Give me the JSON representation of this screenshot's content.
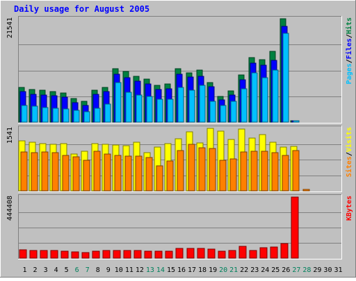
{
  "chart_data": {
    "type": "bar",
    "title": "Daily usage for August 2005",
    "categories": [
      "1",
      "2",
      "3",
      "4",
      "5",
      "6",
      "7",
      "8",
      "9",
      "10",
      "11",
      "12",
      "13",
      "14",
      "15",
      "16",
      "17",
      "18",
      "19",
      "20",
      "21",
      "22",
      "23",
      "24",
      "25",
      "26",
      "27",
      "28",
      "29",
      "30",
      "31"
    ],
    "weekend_days": [
      "6",
      "7",
      "13",
      "14",
      "20",
      "21",
      "27",
      "28"
    ],
    "colors": {
      "background": "#c0c0c0",
      "hits": "#008040",
      "files": "#0000ff",
      "pages": "#00c0ff",
      "visits": "#ffff00",
      "sites": "#ff8000",
      "kbytes": "#ff0000",
      "title": "#0000ff",
      "weekend_label": "#00805c"
    },
    "panels": [
      {
        "id": "hits",
        "scale_label": "21541",
        "ymax": 21541,
        "side_labels": [
          {
            "text": "Pages",
            "color": "#00c0ff"
          },
          {
            "text": "/",
            "color": "#000000"
          },
          {
            "text": "Files",
            "color": "#0000ff"
          },
          {
            "text": "/",
            "color": "#000000"
          },
          {
            "text": "Hits",
            "color": "#008040"
          }
        ],
        "series": [
          {
            "key": "hits",
            "color": "#008040",
            "values": [
              7200,
              6800,
              6700,
              6300,
              6000,
              4900,
              4300,
              6600,
              7200,
              11200,
              10500,
              9500,
              8900,
              7600,
              7900,
              11100,
              10300,
              10800,
              8300,
              5400,
              6500,
              9800,
              13500,
              13000,
              14800,
              21541,
              300,
              0,
              0,
              0,
              0
            ]
          },
          {
            "key": "files",
            "color": "#0000ff",
            "values": [
              6400,
              5800,
              5700,
              5500,
              5200,
              4100,
              3500,
              5800,
              6400,
              10000,
              9200,
              8600,
              7900,
              6800,
              7000,
              10000,
              9400,
              9600,
              7400,
              4600,
              5700,
              8800,
              12300,
              11800,
              12800,
              20000,
              250,
              0,
              0,
              0,
              0
            ]
          },
          {
            "key": "pages",
            "color": "#00c0ff",
            "values": [
              3500,
              3300,
              3000,
              2900,
              2700,
              2500,
              2200,
              2900,
              3700,
              8300,
              6200,
              5700,
              5300,
              4700,
              4800,
              7200,
              6700,
              7600,
              4300,
              3400,
              4300,
              7000,
              10200,
              9300,
              10900,
              18500,
              200,
              0,
              0,
              0,
              0
            ]
          }
        ]
      },
      {
        "id": "visits",
        "scale_label": "1541",
        "ymax": 1541,
        "side_labels": [
          {
            "text": "Sites",
            "color": "#ff8000"
          },
          {
            "text": "/",
            "color": "#000000"
          },
          {
            "text": "Visits",
            "color": "#ffff00"
          }
        ],
        "series": [
          {
            "key": "visits",
            "color": "#ffff00",
            "values": [
              1240,
              1200,
              1170,
              1140,
              1160,
              900,
              970,
              1170,
              1140,
              1130,
              1120,
              1190,
              950,
              1080,
              1170,
              1280,
              1460,
              1180,
              1540,
              1470,
              1260,
              1520,
              1300,
              1390,
              1190,
              1080,
              1090,
              0,
              0,
              0,
              0
            ]
          },
          {
            "key": "sites",
            "color": "#ff8000",
            "values": [
              960,
              940,
              960,
              950,
              870,
              840,
              760,
              980,
              900,
              880,
              860,
              850,
              830,
              610,
              740,
              1000,
              1140,
              1060,
              1040,
              760,
              780,
              960,
              980,
              970,
              940,
              880,
              1000,
              40,
              0,
              0,
              0
            ]
          }
        ]
      },
      {
        "id": "kbytes",
        "scale_label": "444408",
        "ymax": 444408,
        "side_labels": [
          {
            "text": "KBytes",
            "color": "#ff0000"
          }
        ],
        "series": [
          {
            "key": "kbytes",
            "color": "#ff0000",
            "values": [
              61000,
              56000,
              56000,
              56000,
              53000,
              47000,
              39000,
              51000,
              54000,
              54000,
              56000,
              54000,
              53000,
              51000,
              53000,
              70000,
              71000,
              71000,
              68000,
              51000,
              54000,
              87000,
              58000,
              78000,
              83000,
              104000,
              444408,
              0,
              0,
              0,
              0
            ]
          }
        ]
      }
    ]
  }
}
